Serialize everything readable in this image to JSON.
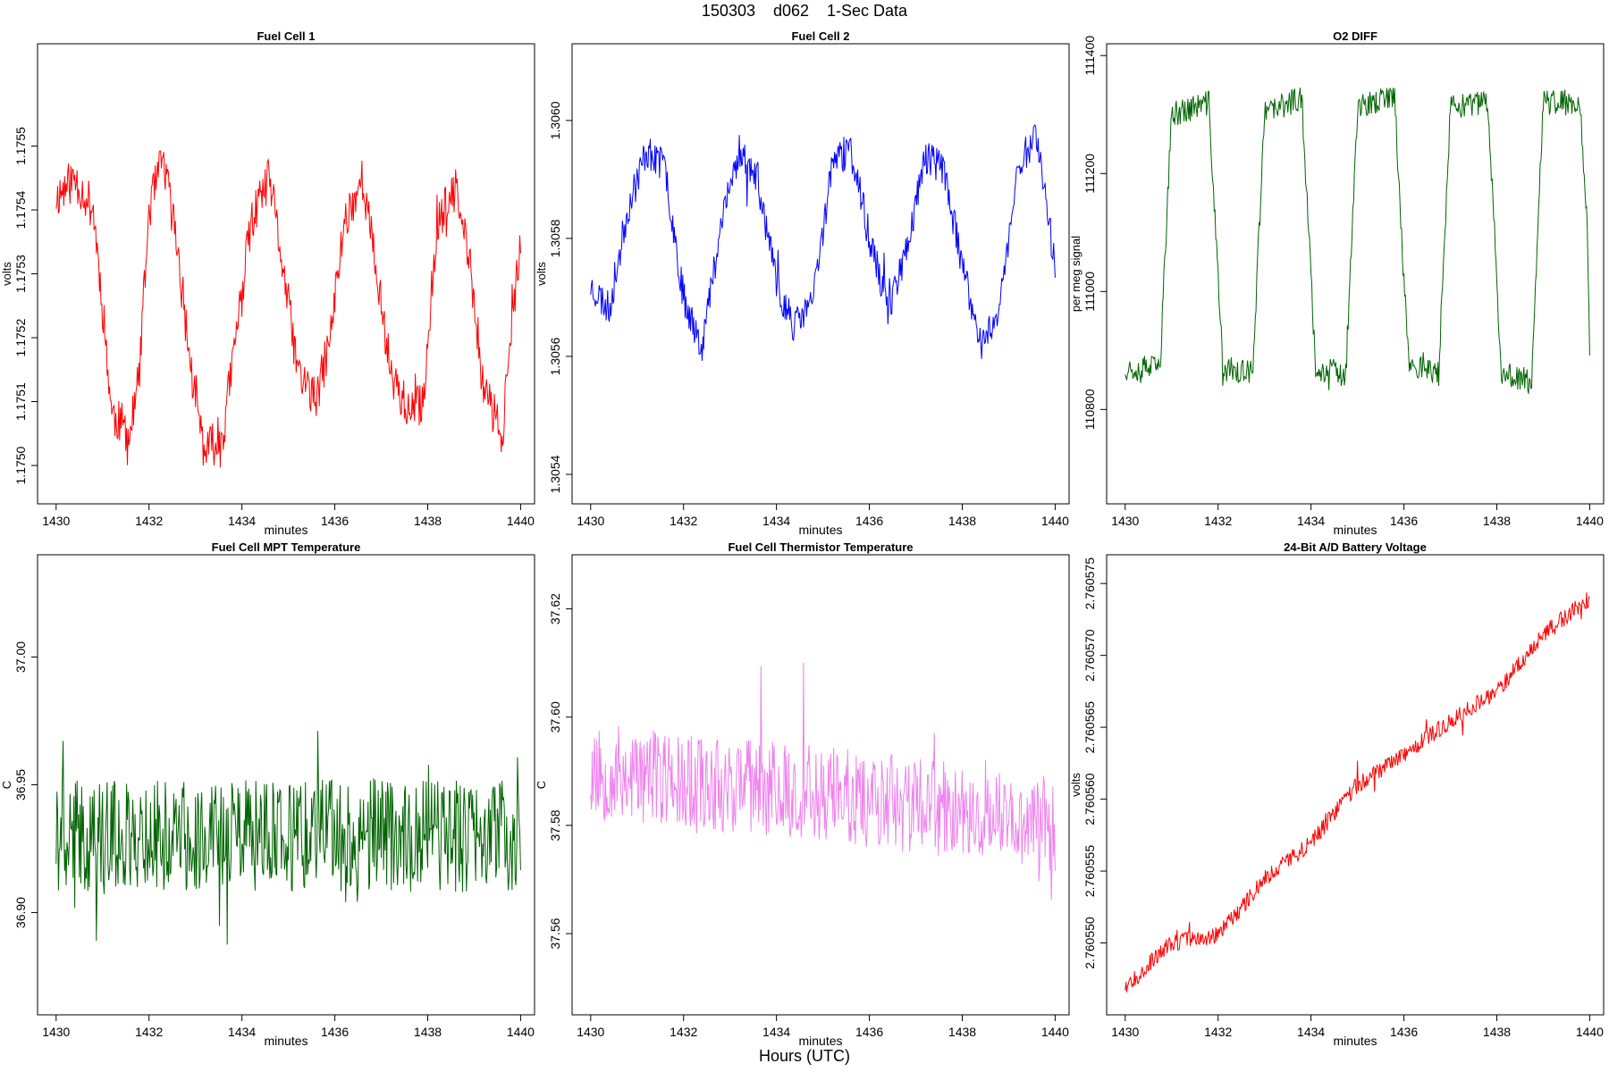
{
  "figure": {
    "title": "150303    d062    1-Sec Data",
    "bottom_label": "Hours (UTC)"
  },
  "chart_data": [
    {
      "id": "fc1",
      "type": "line",
      "title": "Fuel Cell 1",
      "xlabel": "minutes",
      "ylabel": "volts",
      "color": "#ff0000",
      "xlim": [
        1429.6,
        1440.3
      ],
      "ylim": [
        1.17494,
        1.17566
      ],
      "xticks": [
        1430,
        1432,
        1434,
        1436,
        1438,
        1440
      ],
      "yticks": [
        1.175,
        1.1751,
        1.1752,
        1.1753,
        1.1754,
        1.1755
      ],
      "ytick_labels": [
        "1.1750",
        "1.1751",
        "1.1752",
        "1.1753",
        "1.1754",
        "1.1755"
      ],
      "keypoints": {
        "x": [
          1430,
          1430.4,
          1430.8,
          1431.0,
          1431.2,
          1431.6,
          1431.8,
          1432.0,
          1432.3,
          1432.6,
          1432.9,
          1433.2,
          1433.6,
          1433.9,
          1434.2,
          1434.6,
          1434.9,
          1435.2,
          1435.6,
          1435.9,
          1436.2,
          1436.6,
          1436.9,
          1437.2,
          1437.6,
          1437.9,
          1438.2,
          1438.6,
          1438.9,
          1439.2,
          1439.6,
          1440
        ],
        "y": [
          1.17542,
          1.17545,
          1.1754,
          1.17525,
          1.17508,
          1.17505,
          1.17515,
          1.1754,
          1.17548,
          1.17535,
          1.17515,
          1.17502,
          1.17505,
          1.17522,
          1.17538,
          1.17545,
          1.1753,
          1.17515,
          1.1751,
          1.1752,
          1.17538,
          1.17545,
          1.1753,
          1.17515,
          1.17508,
          1.1751,
          1.17538,
          1.17543,
          1.17532,
          1.17512,
          1.17505,
          1.17535
        ]
      },
      "noise": 3.5e-05,
      "seed": 11
    },
    {
      "id": "fc2",
      "type": "line",
      "title": "Fuel Cell 2",
      "xlabel": "minutes",
      "ylabel": "volts",
      "color": "#0000ff",
      "xlim": [
        1429.6,
        1440.3
      ],
      "ylim": [
        1.30535,
        1.30613
      ],
      "xticks": [
        1430,
        1432,
        1434,
        1436,
        1438,
        1440
      ],
      "yticks": [
        1.3054,
        1.3056,
        1.3058,
        1.306
      ],
      "ytick_labels": [
        "1.3054",
        "1.3056",
        "1.3058",
        "1.3060"
      ],
      "keypoints": {
        "x": [
          1430,
          1430.4,
          1430.8,
          1431.2,
          1431.6,
          1432.0,
          1432.4,
          1432.8,
          1433.2,
          1433.6,
          1434.0,
          1434.4,
          1434.8,
          1435.2,
          1435.6,
          1436.0,
          1436.4,
          1436.8,
          1437.2,
          1437.6,
          1438.0,
          1438.4,
          1438.8,
          1439.2,
          1439.6,
          1440
        ],
        "y": [
          1.30572,
          1.30568,
          1.30585,
          1.30595,
          1.30592,
          1.3057,
          1.30562,
          1.30582,
          1.30595,
          1.3059,
          1.30572,
          1.30565,
          1.3057,
          1.30593,
          1.30595,
          1.3058,
          1.30568,
          1.30578,
          1.30594,
          1.30592,
          1.30575,
          1.30562,
          1.30568,
          1.30592,
          1.30598,
          1.30575
        ]
      },
      "noise": 3e-05,
      "seed": 23
    },
    {
      "id": "o2",
      "type": "line",
      "title": "O2 DIFF",
      "xlabel": "minutes",
      "ylabel": "per meg signal",
      "color": "#006400",
      "xlim": [
        1429.6,
        1440.3
      ],
      "ylim": [
        110640,
        111420
      ],
      "xticks": [
        1430,
        1432,
        1434,
        1436,
        1438,
        1440
      ],
      "yticks": [
        110800,
        111000,
        111200,
        111400
      ],
      "ytick_labels": [
        "110800",
        "111000",
        "111200",
        "111400"
      ],
      "keypoints": {
        "x": [
          1430,
          1430.75,
          1430.85,
          1431.0,
          1431.8,
          1431.95,
          1432.1,
          1432.75,
          1432.85,
          1433.0,
          1433.8,
          1433.95,
          1434.1,
          1434.75,
          1434.85,
          1435.0,
          1435.8,
          1435.95,
          1436.1,
          1436.75,
          1436.85,
          1437.0,
          1437.8,
          1437.95,
          1438.1,
          1438.75,
          1438.85,
          1439.0,
          1439.8,
          1439.95,
          1440
        ],
        "y": [
          110870,
          110870,
          111050,
          111300,
          111320,
          111100,
          110870,
          110860,
          111050,
          111300,
          111330,
          111100,
          110870,
          110860,
          111050,
          111310,
          111330,
          111100,
          110880,
          110860,
          111050,
          111310,
          111320,
          111100,
          110860,
          110850,
          111050,
          111320,
          111320,
          111100,
          110900
        ]
      },
      "noise": 22,
      "seed": 37
    },
    {
      "id": "mpt",
      "type": "line",
      "title": "Fuel Cell MPT Temperature",
      "xlabel": "minutes",
      "ylabel": "C",
      "color": "#006400",
      "xlim": [
        1429.6,
        1440.3
      ],
      "ylim": [
        36.86,
        37.04
      ],
      "xticks": [
        1430,
        1432,
        1434,
        1436,
        1438,
        1440
      ],
      "yticks": [
        36.9,
        36.95,
        37.0
      ],
      "ytick_labels": [
        "36.90",
        "36.95",
        "37.00"
      ],
      "keypoints": {
        "x": [
          1430,
          1440
        ],
        "y": [
          36.93,
          36.93
        ]
      },
      "noise": 0.022,
      "seed": 41
    },
    {
      "id": "thermistor",
      "type": "line",
      "title": "Fuel Cell Thermistor Temperature",
      "xlabel": "minutes",
      "ylabel": "C",
      "color": "#ee82ee",
      "xlim": [
        1429.6,
        1440.3
      ],
      "ylim": [
        37.545,
        37.63
      ],
      "xticks": [
        1430,
        1432,
        1434,
        1436,
        1438,
        1440
      ],
      "yticks": [
        37.56,
        37.58,
        37.6,
        37.62
      ],
      "ytick_labels": [
        "37.56",
        "37.58",
        "37.60",
        "37.62"
      ],
      "keypoints": {
        "x": [
          1430,
          1435,
          1440
        ],
        "y": [
          37.59,
          37.586,
          37.58
        ]
      },
      "noise": 0.009,
      "seed": 53
    },
    {
      "id": "battery",
      "type": "line",
      "title": "24-Bit A/D Battery Voltage",
      "xlabel": "minutes",
      "ylabel": "volts",
      "color": "#ff0000",
      "xlim": [
        1429.6,
        1440.3
      ],
      "ylim": [
        2.760545,
        2.760577
      ],
      "xticks": [
        1430,
        1432,
        1434,
        1436,
        1438,
        1440
      ],
      "yticks": [
        2.76055,
        2.760555,
        2.76056,
        2.760565,
        2.76057,
        2.760575
      ],
      "ytick_labels": [
        "2.760550",
        "2.760555",
        "2.760560",
        "2.760565",
        "2.760570",
        "2.760575"
      ],
      "keypoints": {
        "x": [
          1430,
          1431,
          1432,
          1433,
          1434,
          1435,
          1436,
          1437,
          1438,
          1439,
          1440
        ],
        "y": [
          2.760547,
          2.76055,
          2.7605505,
          2.7605545,
          2.760557,
          2.760561,
          2.760563,
          2.7605655,
          2.7605675,
          2.7605715,
          2.760574
        ]
      },
      "noise": 6e-07,
      "seed": 67
    }
  ]
}
